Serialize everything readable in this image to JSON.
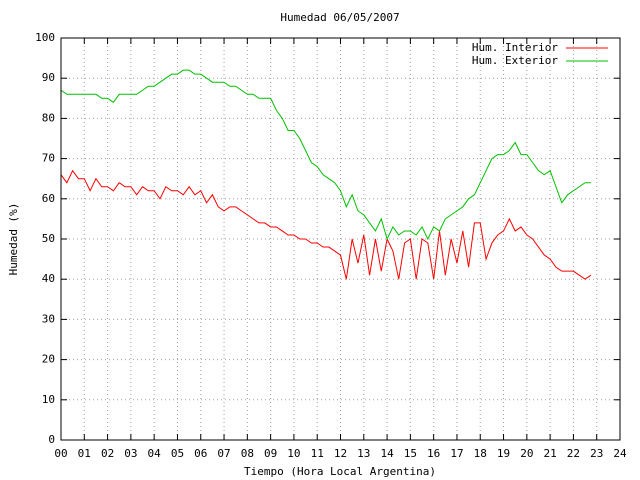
{
  "chart_data": {
    "type": "line",
    "title": "Humedad 06/05/2007",
    "x_label": "Tiempo (Hora Local Argentina)",
    "y_label": "Humedad (%)",
    "xlim": [
      0,
      24
    ],
    "ylim": [
      0,
      100
    ],
    "xticks": [
      {
        "value": 0,
        "label": "00"
      },
      {
        "value": 1,
        "label": "01"
      },
      {
        "value": 2,
        "label": "02"
      },
      {
        "value": 3,
        "label": "03"
      },
      {
        "value": 4,
        "label": "04"
      },
      {
        "value": 5,
        "label": "05"
      },
      {
        "value": 6,
        "label": "06"
      },
      {
        "value": 7,
        "label": "07"
      },
      {
        "value": 8,
        "label": "08"
      },
      {
        "value": 9,
        "label": "09"
      },
      10,
      11,
      12,
      13,
      14,
      15,
      16,
      17,
      18,
      19,
      20,
      21,
      22,
      23,
      24
    ],
    "yticks": [
      0,
      10,
      20,
      30,
      40,
      50,
      60,
      70,
      80,
      90,
      100
    ],
    "grid": true,
    "legend": "upper right",
    "x": [
      0,
      0.25,
      0.5,
      0.75,
      1,
      1.25,
      1.5,
      1.75,
      2,
      2.25,
      2.5,
      2.75,
      3,
      3.25,
      3.5,
      3.75,
      4,
      4.25,
      4.5,
      4.75,
      5,
      5.25,
      5.5,
      5.75,
      6,
      6.25,
      6.5,
      6.75,
      7,
      7.25,
      7.5,
      7.75,
      8,
      8.25,
      8.5,
      8.75,
      9,
      9.25,
      9.5,
      9.75,
      10,
      10.25,
      10.5,
      10.75,
      11,
      11.25,
      11.5,
      11.75,
      12,
      12.25,
      12.5,
      12.75,
      13,
      13.25,
      13.5,
      13.75,
      14,
      14.25,
      14.5,
      14.75,
      15,
      15.25,
      15.5,
      15.75,
      16,
      16.25,
      16.5,
      16.75,
      17,
      17.25,
      17.5,
      17.75,
      18,
      18.25,
      18.5,
      18.75,
      19,
      19.25,
      19.5,
      19.75,
      20,
      20.25,
      20.5,
      20.75,
      21,
      21.25,
      21.5,
      21.75,
      22,
      22.25,
      22.5,
      22.75
    ],
    "series": [
      {
        "name": "Hum. Interior",
        "color": "#ff0000",
        "values": [
          66,
          64,
          67,
          65,
          65,
          62,
          65,
          63,
          63,
          62,
          64,
          63,
          63,
          61,
          63,
          62,
          62,
          60,
          63,
          62,
          62,
          61,
          63,
          61,
          62,
          59,
          61,
          58,
          57,
          58,
          58,
          57,
          56,
          55,
          54,
          54,
          53,
          53,
          52,
          51,
          51,
          50,
          50,
          49,
          49,
          48,
          48,
          47,
          46,
          40,
          50,
          44,
          51,
          41,
          50,
          42,
          50,
          47,
          40,
          49,
          50,
          40,
          50,
          49,
          40,
          52,
          41,
          50,
          44,
          52,
          43,
          54,
          54,
          45,
          49,
          51,
          52,
          55,
          52,
          53,
          51,
          50,
          48,
          46,
          45,
          43,
          42,
          42,
          42,
          41,
          40,
          41
        ]
      },
      {
        "name": "Hum. Exterior",
        "color": "#00c000",
        "values": [
          87,
          86,
          86,
          86,
          86,
          86,
          86,
          85,
          85,
          84,
          86,
          86,
          86,
          86,
          87,
          88,
          88,
          89,
          90,
          91,
          91,
          92,
          92,
          91,
          91,
          90,
          89,
          89,
          89,
          88,
          88,
          87,
          86,
          86,
          85,
          85,
          85,
          82,
          80,
          77,
          77,
          75,
          72,
          69,
          68,
          66,
          65,
          64,
          62,
          58,
          61,
          57,
          56,
          54,
          52,
          55,
          50,
          53,
          51,
          52,
          52,
          51,
          53,
          50,
          53,
          52,
          55,
          56,
          57,
          58,
          60,
          61,
          64,
          67,
          70,
          71,
          71,
          72,
          74,
          71,
          71,
          69,
          67,
          66,
          67,
          63,
          59,
          61,
          62,
          63,
          64,
          64
        ]
      }
    ]
  }
}
